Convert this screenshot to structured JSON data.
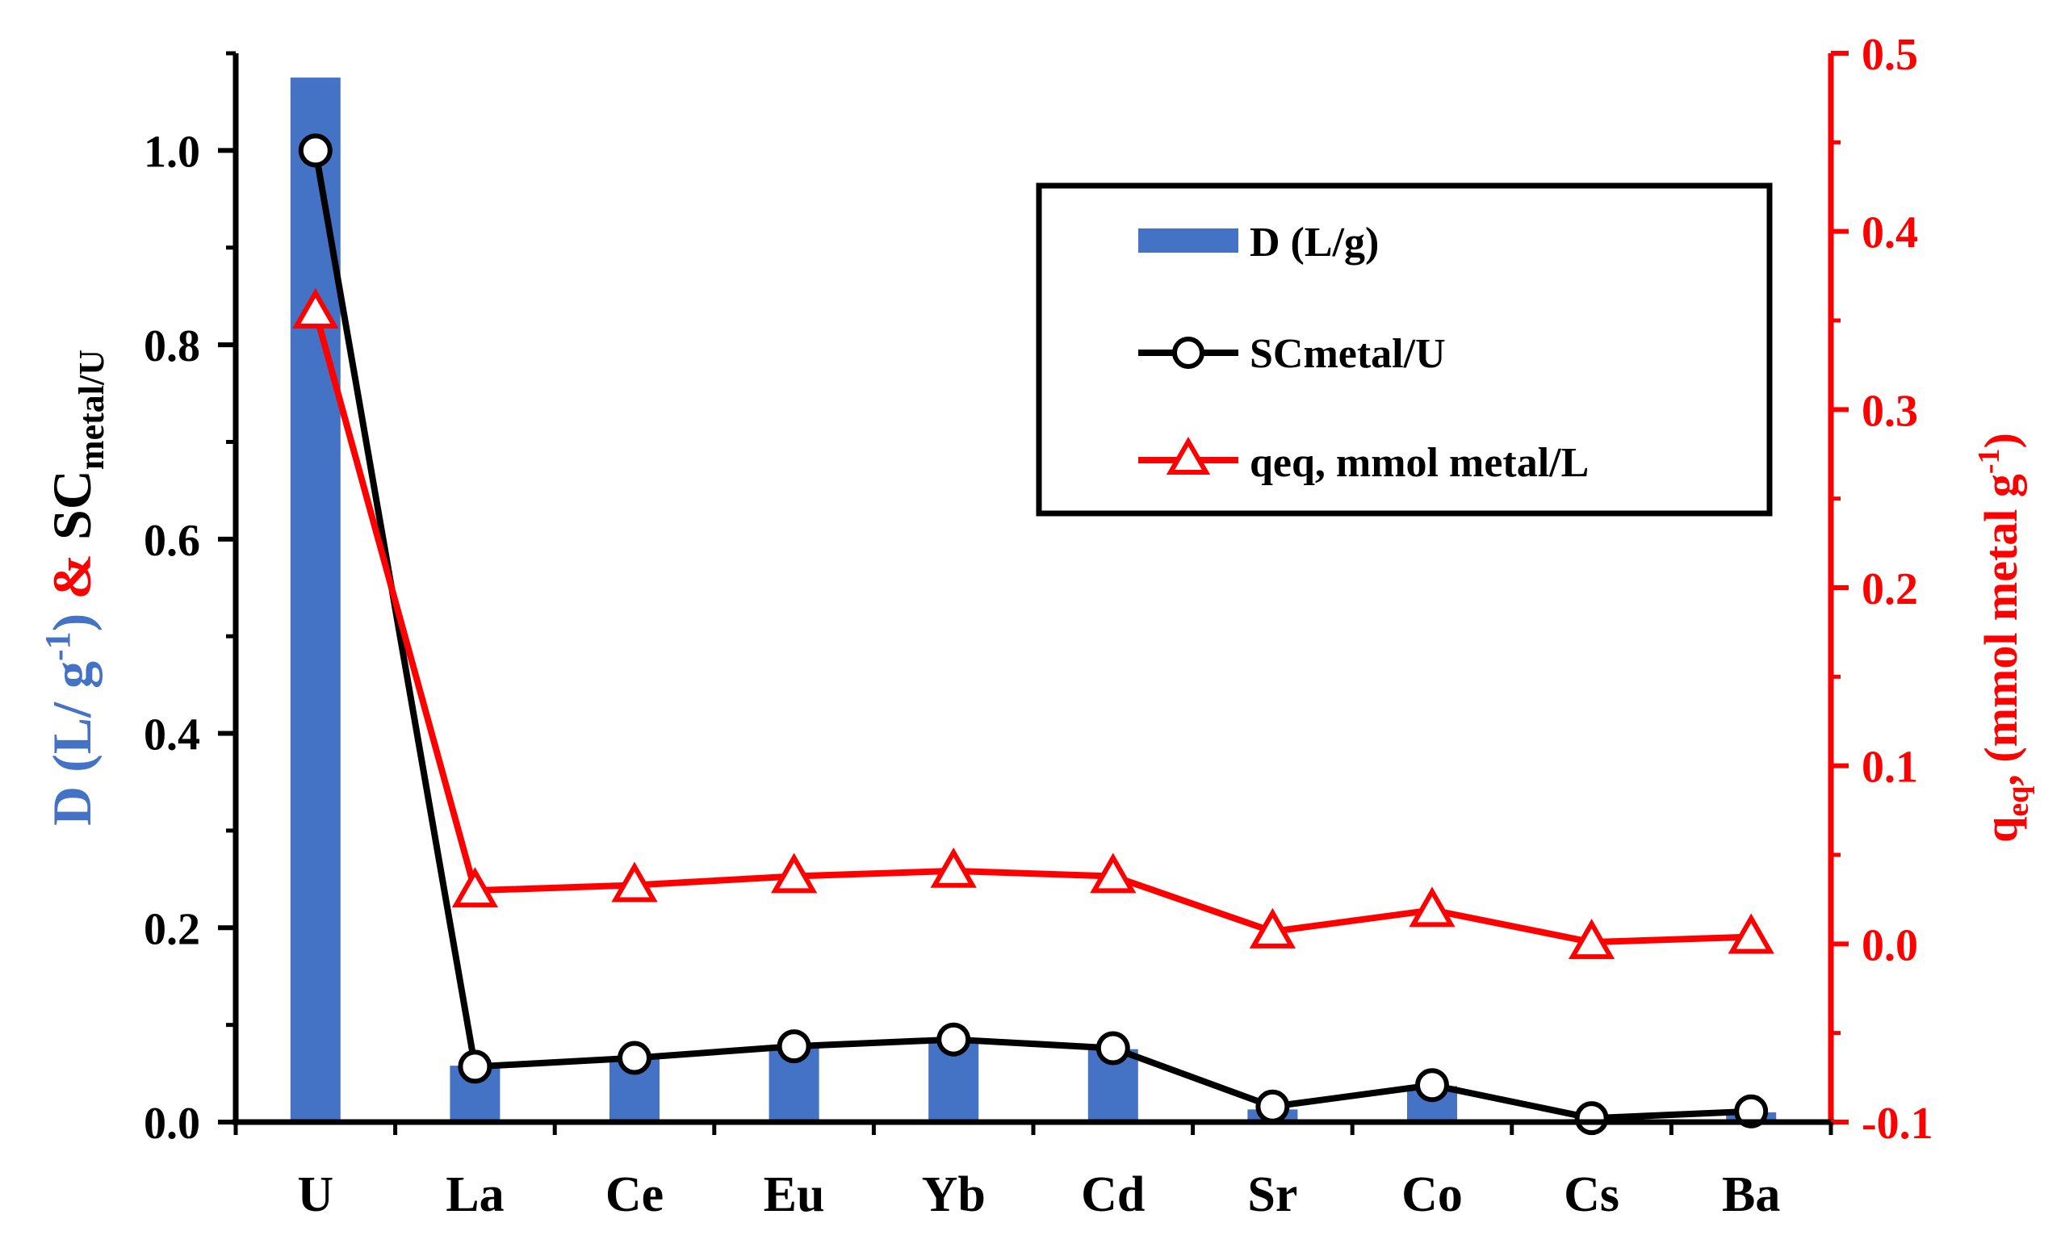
{
  "colors": {
    "bar": "#4472C4",
    "sc_line": "#000000",
    "qeq_line": "#FF0000",
    "left_title_blue": "#4472C4",
    "left_title_red": "#FF0000",
    "right_axis": "#FF0000"
  },
  "chart_data": {
    "type": "bar",
    "categories": [
      "U",
      "La",
      "Ce",
      "Eu",
      "Yb",
      "Cd",
      "Sr",
      "Co",
      "Cs",
      "Ba"
    ],
    "series": [
      {
        "name": "D (L/g)",
        "kind": "bar",
        "axis": "left",
        "values": [
          1.075,
          0.058,
          0.065,
          0.077,
          0.083,
          0.075,
          0.013,
          0.037,
          0.003,
          0.01
        ]
      },
      {
        "name": "SCmetal/U",
        "kind": "line",
        "marker": "circle",
        "axis": "left",
        "values": [
          1.0,
          0.057,
          0.066,
          0.078,
          0.085,
          0.076,
          0.016,
          0.038,
          0.004,
          0.011
        ]
      },
      {
        "name": "qeq, mmol metal/L",
        "kind": "line",
        "marker": "triangle",
        "axis": "right",
        "values": [
          0.355,
          0.03,
          0.033,
          0.038,
          0.041,
          0.038,
          0.007,
          0.019,
          0.001,
          0.004
        ]
      }
    ],
    "left_axis": {
      "ylim": [
        0,
        1.1
      ],
      "ticks": [
        "0.0",
        "0.2",
        "0.4",
        "0.6",
        "0.8",
        "1.0"
      ],
      "tick_values": [
        0,
        0.2,
        0.4,
        0.6,
        0.8,
        1.0
      ],
      "title_parts": {
        "d_part": "D (L/ g",
        "d_sup": "-1",
        "d_close": ")",
        "amp": " & ",
        "sc_part": "SC",
        "sc_sub": "metal/U"
      }
    },
    "right_axis": {
      "ylim": [
        -0.1,
        0.5
      ],
      "ticks": [
        "-0.1",
        "0.0",
        "0.1",
        "0.2",
        "0.3",
        "0.4",
        "0.5"
      ],
      "tick_values": [
        -0.1,
        0.0,
        0.1,
        0.2,
        0.3,
        0.4,
        0.5
      ],
      "title_parts": {
        "q": "q",
        "q_sub": "eq",
        "rest": ", (mmol metal g",
        "sup": "-1",
        "close": ")"
      }
    },
    "legend": {
      "position": "top-right",
      "items": [
        "D (L/g)",
        "SCmetal/U",
        "qeq, mmol metal/L"
      ]
    }
  }
}
